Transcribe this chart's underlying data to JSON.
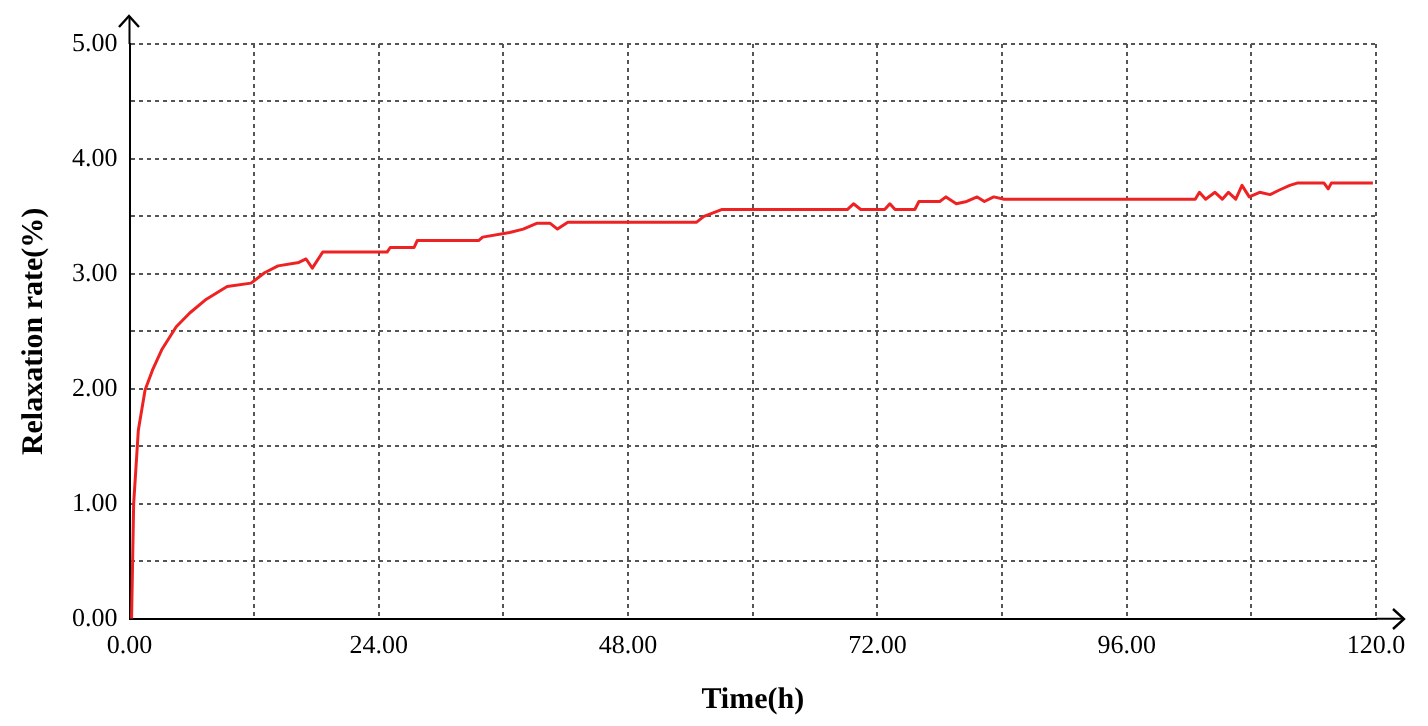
{
  "chart_data": {
    "type": "line",
    "xlabel": "Time(h)",
    "ylabel": "Relaxation rate(%)",
    "xlim": [
      0,
      120
    ],
    "ylim": [
      0,
      5
    ],
    "xticks": [
      {
        "value": 0,
        "label": "0.00"
      },
      {
        "value": 12,
        "label": null
      },
      {
        "value": 24,
        "label": "24.00"
      },
      {
        "value": 36,
        "label": null
      },
      {
        "value": 48,
        "label": "48.00"
      },
      {
        "value": 60,
        "label": null
      },
      {
        "value": 72,
        "label": "72.00"
      },
      {
        "value": 84,
        "label": null
      },
      {
        "value": 96,
        "label": "96.00"
      },
      {
        "value": 108,
        "label": null
      },
      {
        "value": 120,
        "label": "120.0"
      }
    ],
    "yticks": [
      {
        "value": 0,
        "label": "0.00"
      },
      {
        "value": 0.5,
        "label": null
      },
      {
        "value": 1,
        "label": "1.00"
      },
      {
        "value": 1.5,
        "label": null
      },
      {
        "value": 2,
        "label": "2.00"
      },
      {
        "value": 2.5,
        "label": null
      },
      {
        "value": 3,
        "label": "3.00"
      },
      {
        "value": 3.5,
        "label": null
      },
      {
        "value": 4,
        "label": "4.00"
      },
      {
        "value": 4.5,
        "label": null
      },
      {
        "value": 5,
        "label": "5.00"
      }
    ],
    "grid": true,
    "legend": false,
    "marker": "none",
    "line_style": "solid",
    "series": [
      {
        "color": "#ee2222",
        "x": [
          0.2,
          0.4,
          0.85,
          1.5,
          2.2,
          3.1,
          4.5,
          5.8,
          7.4,
          9.4,
          11.7,
          13,
          14.3,
          16.3,
          17,
          17.6,
          18.6,
          24.8,
          25.1,
          27.4,
          27.7,
          33.6,
          34,
          36.6,
          37.9,
          39.2,
          40.5,
          41.2,
          42.2,
          47.1,
          54.6,
          55.3,
          57,
          69.1,
          69.7,
          70.4,
          72.7,
          73.2,
          73.7,
          75.6,
          76,
          78,
          78.6,
          79.6,
          80.6,
          81.6,
          82.3,
          83.2,
          84.2,
          102.6,
          103,
          103.6,
          104.5,
          105.2,
          105.8,
          106.5,
          107.1,
          107.8,
          108.8,
          109.8,
          110.7,
          111.7,
          112.4,
          115,
          115.4,
          115.7,
          119.7
        ],
        "values": [
          0,
          1.0,
          1.64,
          1.99,
          2.16,
          2.34,
          2.54,
          2.66,
          2.78,
          2.89,
          2.92,
          3.01,
          3.07,
          3.1,
          3.13,
          3.05,
          3.19,
          3.19,
          3.23,
          3.23,
          3.29,
          3.29,
          3.32,
          3.36,
          3.39,
          3.44,
          3.44,
          3.39,
          3.45,
          3.45,
          3.45,
          3.5,
          3.56,
          3.56,
          3.61,
          3.56,
          3.56,
          3.61,
          3.56,
          3.56,
          3.63,
          3.63,
          3.67,
          3.61,
          3.63,
          3.67,
          3.63,
          3.67,
          3.65,
          3.65,
          3.71,
          3.65,
          3.71,
          3.65,
          3.71,
          3.65,
          3.77,
          3.67,
          3.71,
          3.69,
          3.73,
          3.77,
          3.79,
          3.79,
          3.74,
          3.79,
          3.79
        ]
      }
    ]
  }
}
